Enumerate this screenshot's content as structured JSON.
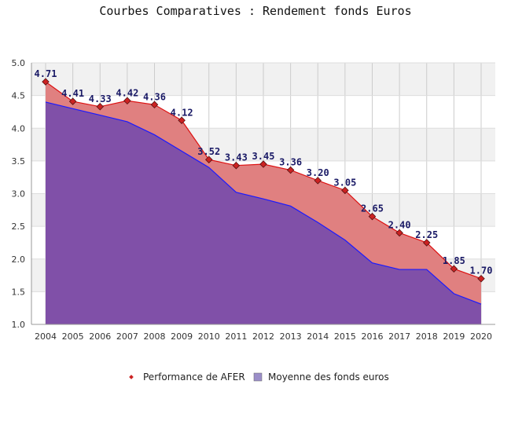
{
  "chart_data": {
    "type": "area",
    "title": "Courbes Comparatives : Rendement fonds Euros",
    "categories": [
      "2004",
      "2005",
      "2006",
      "2007",
      "2008",
      "2009",
      "2010",
      "2011",
      "2012",
      "2013",
      "2014",
      "2015",
      "2016",
      "2017",
      "2018",
      "2019",
      "2020"
    ],
    "ylim": [
      1.0,
      5.0
    ],
    "yticks": [
      "1.0",
      "1.5",
      "2.0",
      "2.5",
      "3.0",
      "3.5",
      "4.0",
      "4.5",
      "5.0"
    ],
    "grid": true,
    "legend_position": "bottom",
    "series": [
      {
        "name": "Performance de AFER",
        "values": [
          4.71,
          4.41,
          4.33,
          4.42,
          4.36,
          4.12,
          3.52,
          3.43,
          3.45,
          3.36,
          3.2,
          3.05,
          2.65,
          2.4,
          2.25,
          1.85,
          1.7
        ],
        "labels": [
          "4.71",
          "4.41",
          "4.33",
          "4.42",
          "4.36",
          "4.12",
          "3.52",
          "3.43",
          "3.45",
          "3.36",
          "3.20",
          "3.05",
          "2.65",
          "2.40",
          "2.25",
          "1.85",
          "1.70"
        ],
        "color": "#e08080",
        "line_color": "#dd1111",
        "marker_color": "#cc2222"
      },
      {
        "name": "Moyenne des fonds euros",
        "values": [
          4.4,
          4.3,
          4.2,
          4.1,
          3.9,
          3.65,
          3.4,
          3.02,
          2.92,
          2.81,
          2.56,
          2.29,
          1.94,
          1.84,
          1.84,
          1.47,
          1.31
        ],
        "color": "#8050a8",
        "line_color": "#1a1aff"
      }
    ]
  }
}
